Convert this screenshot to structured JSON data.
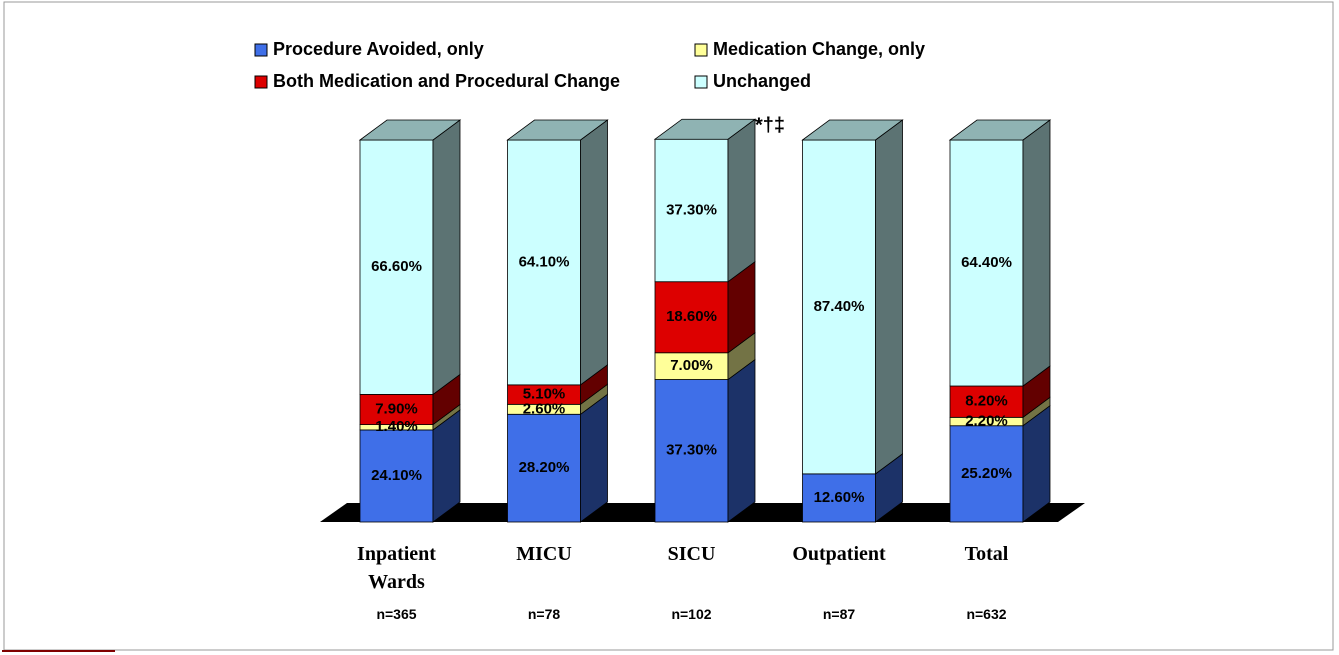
{
  "chart_data": {
    "type": "bar3d_stacked",
    "categories": [
      "Inpatient Wards",
      "MICU",
      "SICU",
      "Outpatient",
      "Total"
    ],
    "sample_sizes": [
      "n=365",
      "n=78",
      "n=102",
      "n=87",
      "n=632"
    ],
    "annotation": "*†‡",
    "series": [
      {
        "name": "Procedure Avoided, only",
        "color": "#3f6fe8",
        "values": [
          24.1,
          28.2,
          37.3,
          12.6,
          25.2
        ],
        "value_labels": [
          "24.10%",
          "28.20%",
          "37.30%",
          "12.60%",
          "25.20%"
        ]
      },
      {
        "name": "Medication Change, only",
        "color": "#ffff99",
        "values": [
          1.4,
          2.6,
          7.0,
          0,
          2.2
        ],
        "value_labels": [
          "1.40%",
          "2.60%",
          "7.00%",
          null,
          "2.20%"
        ]
      },
      {
        "name": "Both Medication and Procedural Change",
        "color": "#dd0000",
        "values": [
          7.9,
          5.1,
          18.6,
          0,
          8.2
        ],
        "value_labels": [
          "7.90%",
          "5.10%",
          "18.60%",
          null,
          "8.20%"
        ]
      },
      {
        "name": "Unchanged",
        "color": "#ccffff",
        "values": [
          66.6,
          64.1,
          37.3,
          87.4,
          64.4
        ],
        "value_labels": [
          "66.60%",
          "64.10%",
          "37.30%",
          "87.40%",
          "64.40%"
        ]
      }
    ]
  }
}
